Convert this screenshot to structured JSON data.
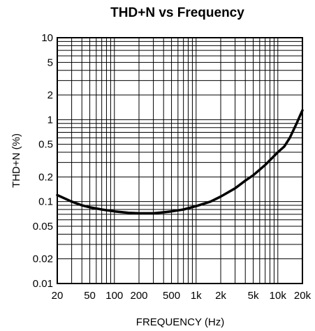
{
  "chart_data": {
    "type": "line",
    "title": "THD+N vs Frequency",
    "xlabel": "FREQUENCY (Hz)",
    "ylabel": "THD+N (%)",
    "xscale": "log",
    "yscale": "log",
    "xlim": [
      20,
      20000
    ],
    "ylim": [
      0.01,
      10
    ],
    "grid": true,
    "x_ticks": [
      {
        "value": 20,
        "label": "20"
      },
      {
        "value": 50,
        "label": "50"
      },
      {
        "value": 100,
        "label": "100"
      },
      {
        "value": 200,
        "label": "200"
      },
      {
        "value": 500,
        "label": "500"
      },
      {
        "value": 1000,
        "label": "1k"
      },
      {
        "value": 2000,
        "label": "2k"
      },
      {
        "value": 5000,
        "label": "5k"
      },
      {
        "value": 10000,
        "label": "10k"
      },
      {
        "value": 20000,
        "label": "20k"
      }
    ],
    "y_ticks": [
      {
        "value": 10,
        "label": "10"
      },
      {
        "value": 5,
        "label": "5"
      },
      {
        "value": 2,
        "label": "2"
      },
      {
        "value": 1,
        "label": "1"
      },
      {
        "value": 0.5,
        "label": "0.5"
      },
      {
        "value": 0.2,
        "label": "0.2"
      },
      {
        "value": 0.1,
        "label": "0.1"
      },
      {
        "value": 0.05,
        "label": "0.05"
      },
      {
        "value": 0.02,
        "label": "0.02"
      },
      {
        "value": 0.01,
        "label": "0.01"
      }
    ],
    "series": [
      {
        "color": "#000000",
        "points": [
          [
            20,
            0.12
          ],
          [
            30,
            0.1
          ],
          [
            40,
            0.09
          ],
          [
            50,
            0.085
          ],
          [
            70,
            0.08
          ],
          [
            100,
            0.076
          ],
          [
            150,
            0.073
          ],
          [
            200,
            0.072
          ],
          [
            300,
            0.072
          ],
          [
            400,
            0.074
          ],
          [
            500,
            0.076
          ],
          [
            700,
            0.08
          ],
          [
            1000,
            0.088
          ],
          [
            1500,
            0.1
          ],
          [
            2000,
            0.115
          ],
          [
            3000,
            0.145
          ],
          [
            4000,
            0.18
          ],
          [
            5000,
            0.21
          ],
          [
            7000,
            0.28
          ],
          [
            10000,
            0.4
          ],
          [
            12000,
            0.47
          ],
          [
            14000,
            0.6
          ],
          [
            17000,
            0.9
          ],
          [
            20000,
            1.3
          ]
        ]
      }
    ]
  }
}
